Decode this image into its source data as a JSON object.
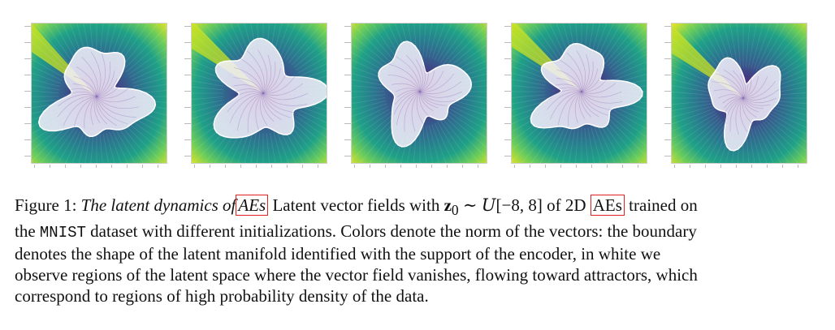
{
  "figure": {
    "panels": [
      {
        "id": "p1"
      },
      {
        "id": "p2"
      },
      {
        "id": "p3"
      },
      {
        "id": "p4"
      },
      {
        "id": "p5"
      }
    ],
    "colors": {
      "background_ring": [
        "#f0e71d",
        "#6ccd5a",
        "#1fa187",
        "#277f8e",
        "#365c8d",
        "#46327e",
        "#440154"
      ],
      "manifold": "#f4f1fb",
      "streamline": "#7a5fb0",
      "caption_box": "#e02020"
    }
  },
  "caption": {
    "prefix": "Figure 1: ",
    "title_italic": "The latent dynamics of",
    "title_boxed": "AEs",
    "part1": " Latent vector fields with ",
    "math_z": "z",
    "math_sub": "0",
    "math_sim": " ∼ ",
    "math_U": "U",
    "math_range": "[−8, 8]",
    "part2": " of 2D ",
    "aes_boxed": "AEs",
    "part3": " trained on",
    "line2_a": "the ",
    "line2_mono": "MNIST",
    "line2_b": " dataset with different initializations. Colors denote the norm of the vectors: the boundary",
    "line3": "denotes the shape of the latent manifold identified with the support of the encoder, in white we",
    "line4": "observe regions of the latent space where the vector field vanishes, flowing toward attractors, which",
    "line5": "correspond to regions of high probability density of the data."
  }
}
